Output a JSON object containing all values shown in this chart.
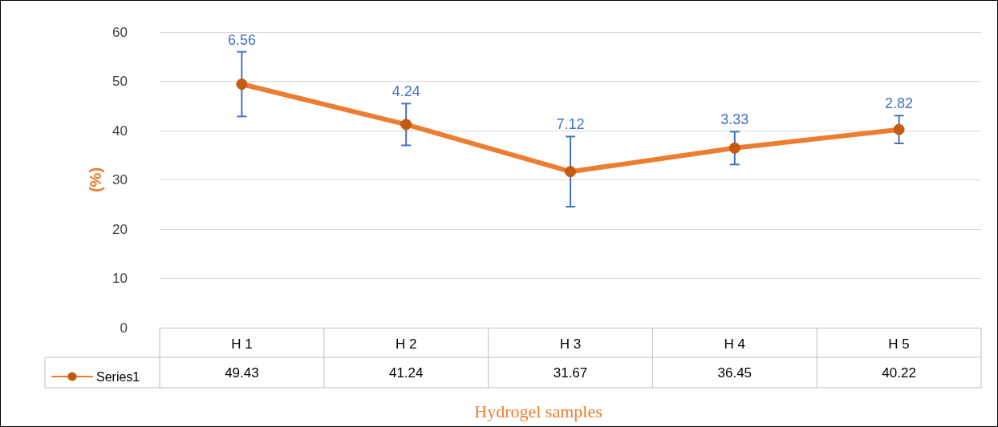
{
  "chart_data": {
    "type": "line",
    "xlabel": "Hydrogel samples",
    "ylabel": "(%)",
    "categories": [
      "H 1",
      "H 2",
      "H 3",
      "H 4",
      "H 5"
    ],
    "series": [
      {
        "name": "Series1",
        "color": "#ed7d31",
        "values": [
          49.43,
          41.24,
          31.67,
          36.45,
          40.22
        ],
        "errors": [
          6.56,
          4.24,
          7.12,
          3.33,
          2.82
        ]
      }
    ],
    "annotations": [
      {
        "text": "6.56",
        "x": "H 1",
        "y": 55.99
      },
      {
        "text": "4.24",
        "x": "H 2",
        "y": 45.48
      },
      {
        "text": "7.12",
        "x": "H 3",
        "y": 38.79
      },
      {
        "text": "3.33",
        "x": "H 4",
        "y": 39.78
      },
      {
        "text": "2.82",
        "x": "H 5",
        "y": 43.04
      }
    ],
    "ylim": [
      0,
      60
    ],
    "yticks": [
      0,
      10,
      20,
      30,
      40,
      50,
      60
    ],
    "grid": "y",
    "legend": "bottom",
    "marker": "circle",
    "line_style": "solid",
    "data_labels": true
  }
}
